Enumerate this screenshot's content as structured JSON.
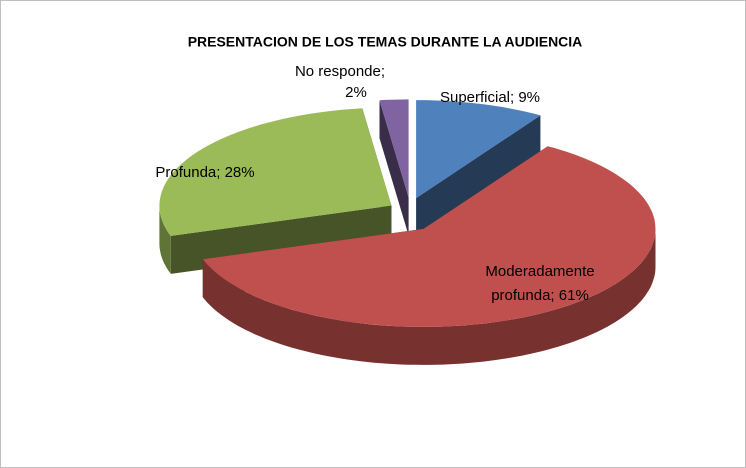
{
  "chart_data": {
    "type": "pie3d",
    "title": "PRESENTACION DE LOS TEMAS DURANTE LA AUDIENCIA",
    "values": [
      9,
      61,
      28,
      2
    ],
    "value_labels": [
      [
        "Superficial; 9%"
      ],
      [
        "Moderadamente",
        "profunda; 61%"
      ],
      [
        "Profunda; 28%"
      ],
      [
        "No responde;",
        "2%"
      ]
    ],
    "colors": [
      "#4f81bd",
      "#c0504d",
      "#9bbb59",
      "#8064a2"
    ]
  }
}
